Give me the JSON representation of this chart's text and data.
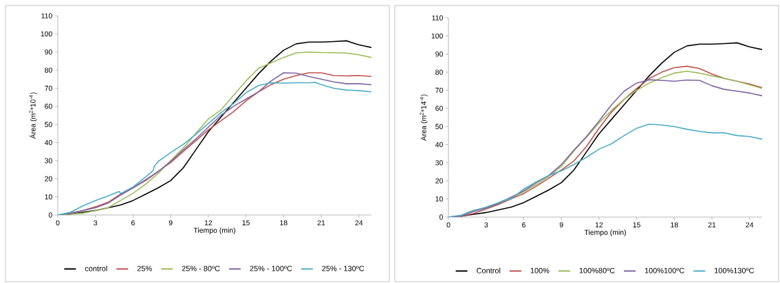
{
  "chart_data": [
    {
      "type": "line",
      "xlabel": "Tiempo (min)",
      "ylabel": "Área (m$^{2}$*10$^{-4}$)",
      "xlim": [
        0,
        25
      ],
      "ylim": [
        0,
        110
      ],
      "xticks": [
        0,
        3,
        6,
        9,
        12,
        15,
        18,
        21,
        24
      ],
      "yticks": [
        0,
        10,
        20,
        30,
        40,
        50,
        60,
        70,
        80,
        90,
        100,
        110
      ],
      "legend": "bottom",
      "x": [
        0,
        1,
        2,
        3,
        4,
        5,
        6,
        7,
        8,
        9,
        10,
        11,
        12,
        13,
        14,
        15,
        16,
        17,
        18,
        19,
        20,
        21,
        22,
        23,
        24,
        25
      ],
      "series": [
        {
          "name": "control",
          "color": "#000000",
          "values": [
            0,
            0.5,
            1.5,
            2.5,
            4,
            5.5,
            8,
            11.5,
            15,
            19,
            26,
            36,
            46,
            54,
            62,
            70,
            78,
            85,
            91,
            94.5,
            95.5,
            95.5,
            95.8,
            96.2,
            94,
            92.5
          ]
        },
        {
          "name": "25%",
          "color": "#c0504d",
          "values": [
            0,
            1,
            2.5,
            4.5,
            7,
            11.5,
            15,
            19,
            24,
            29,
            35,
            41,
            47,
            52,
            57,
            63,
            68,
            72,
            75,
            77,
            78.5,
            78.5,
            77,
            76.8,
            77,
            76.5
          ]
        },
        {
          "name": "25% - 80ºC",
          "color": "#9bbb59",
          "values": [
            0,
            0.5,
            1,
            2.5,
            4,
            8,
            12,
            17,
            23,
            30,
            37,
            45,
            53,
            58,
            66,
            74,
            81,
            84,
            87,
            89.5,
            90,
            89.7,
            89.6,
            89.4,
            88.5,
            87
          ]
        },
        {
          "name": "25% - 100ºC",
          "color": "#8064a2",
          "values": [
            0,
            1,
            2.5,
            4,
            6.5,
            11,
            15,
            19.5,
            24,
            29.5,
            36,
            42,
            48.5,
            55,
            60,
            64,
            68,
            74,
            78.5,
            78.3,
            76.5,
            75,
            73.5,
            72.5,
            72.5,
            72
          ]
        },
        {
          "name": "25% - 130ºC",
          "color": "#4bacc6",
          "x": [
            0,
            1,
            2,
            3,
            4,
            4.9,
            5,
            6,
            7,
            7.6,
            7.7,
            8,
            9,
            10,
            11,
            12,
            13,
            14,
            15,
            16,
            17,
            18,
            19,
            20,
            20.5,
            21,
            22,
            23,
            24,
            25
          ],
          "values": [
            0,
            1.5,
            5,
            8,
            10.5,
            13,
            11.8,
            15.5,
            21,
            24.5,
            27,
            29.5,
            34.5,
            39,
            44.5,
            50.5,
            56.5,
            61.5,
            67.5,
            71.5,
            73,
            72.8,
            73,
            73,
            73.3,
            72,
            70,
            69,
            68.7,
            68
          ]
        }
      ]
    },
    {
      "type": "line",
      "xlabel": "Tiempo (min)",
      "ylabel": "Area (m$^{2}$*14$^{-4}$)",
      "xlim": [
        0,
        25
      ],
      "ylim": [
        0,
        110
      ],
      "xticks": [
        0,
        3,
        6,
        9,
        12,
        15,
        18,
        21,
        24
      ],
      "yticks": [
        0,
        10,
        20,
        30,
        40,
        50,
        60,
        70,
        80,
        90,
        100,
        110
      ],
      "legend": "bottom",
      "x": [
        0,
        1,
        2,
        3,
        4,
        5,
        6,
        7,
        8,
        9,
        10,
        11,
        12,
        13,
        14,
        15,
        16,
        17,
        18,
        19,
        20,
        21,
        22,
        23,
        24,
        25
      ],
      "series": [
        {
          "name": "Control",
          "color": "#000000",
          "values": [
            0,
            0.5,
            1.5,
            2.5,
            4,
            5.5,
            8,
            11.5,
            15,
            19,
            26,
            36,
            46,
            54,
            62,
            70,
            78,
            85,
            91,
            94.5,
            95.5,
            95.5,
            95.8,
            96.2,
            94,
            92.5
          ]
        },
        {
          "name": "100%",
          "color": "#c0504d",
          "values": [
            0,
            0.3,
            2,
            4.5,
            7,
            10,
            13,
            17,
            21.5,
            26,
            31,
            39,
            49,
            58,
            65,
            71,
            76.5,
            80,
            82.5,
            83.3,
            82,
            79,
            76.5,
            75,
            73.5,
            71.5
          ]
        },
        {
          "name": "100%80ºC",
          "color": "#9bbb59",
          "x": [
            0,
            1,
            1.5,
            2,
            3,
            4,
            5,
            6,
            7,
            8,
            9,
            10,
            11,
            12,
            13,
            14,
            15,
            16,
            17,
            18,
            19,
            20,
            21,
            22,
            23,
            24,
            25
          ],
          "values": [
            0,
            0.5,
            2.5,
            3.8,
            5,
            7.5,
            10.5,
            14,
            18,
            22.5,
            28,
            36.5,
            44,
            52,
            59,
            65,
            70,
            74,
            77,
            79.5,
            80.5,
            79.5,
            78,
            76.5,
            75,
            73,
            71
          ]
        },
        {
          "name": "100%100ºC",
          "color": "#8064a2",
          "values": [
            0,
            0.5,
            3,
            5,
            7.5,
            11,
            14.5,
            19,
            23,
            29,
            37,
            44.5,
            53,
            62,
            69.5,
            74,
            75.8,
            75.5,
            75,
            75.7,
            75.5,
            72.5,
            70.5,
            69.5,
            68.5,
            67
          ]
        },
        {
          "name": "100%130ºC",
          "color": "#4bacc6",
          "x": [
            0,
            1,
            2,
            3,
            4,
            4.5,
            5,
            6,
            7,
            8,
            9,
            10,
            11,
            12,
            13,
            14,
            15,
            16,
            17,
            18,
            19,
            20,
            21,
            22,
            23,
            24,
            25
          ],
          "values": [
            0,
            1,
            3.5,
            5.5,
            8,
            9.5,
            10,
            15.5,
            19.5,
            23,
            25.5,
            29,
            33,
            37.5,
            40.5,
            45,
            49,
            51.3,
            50.8,
            50,
            48.5,
            47.3,
            46.5,
            46.5,
            45,
            44.5,
            43
          ]
        }
      ]
    }
  ]
}
